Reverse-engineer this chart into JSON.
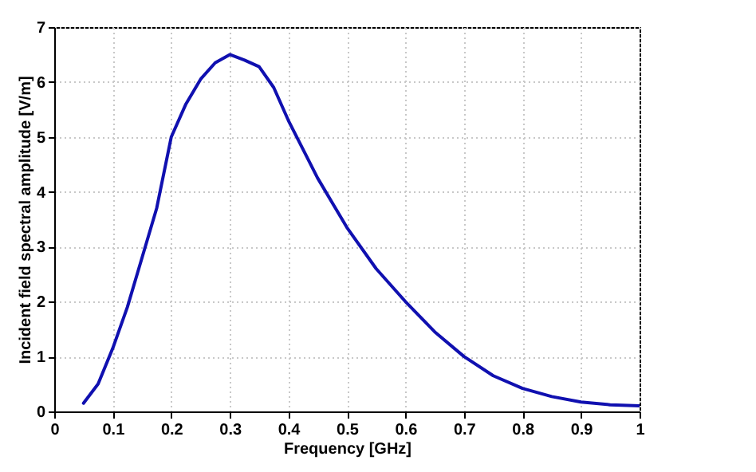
{
  "chart_data": {
    "type": "line",
    "xlabel": "Frequency [GHz]",
    "ylabel": "Incident field spectral amplitude [V/m]",
    "x": [
      0.05,
      0.075,
      0.1,
      0.125,
      0.15,
      0.175,
      0.2,
      0.225,
      0.25,
      0.275,
      0.3,
      0.325,
      0.35,
      0.375,
      0.4,
      0.45,
      0.5,
      0.55,
      0.6,
      0.65,
      0.7,
      0.75,
      0.8,
      0.85,
      0.9,
      0.95,
      1.0
    ],
    "series": [
      {
        "color": "#1010b0",
        "values": [
          0.15,
          0.5,
          1.15,
          1.9,
          2.8,
          3.7,
          5.0,
          5.6,
          6.05,
          6.35,
          6.5,
          6.4,
          6.28,
          5.9,
          5.3,
          4.25,
          3.35,
          2.6,
          2.0,
          1.45,
          1.0,
          0.65,
          0.42,
          0.27,
          0.17,
          0.12,
          0.1
        ]
      }
    ],
    "xlim": [
      0,
      1
    ],
    "xticks": [
      0,
      0.1,
      0.2,
      0.3,
      0.4,
      0.5,
      0.6,
      0.7,
      0.8,
      0.9,
      1
    ],
    "ylim": [
      0,
      7
    ],
    "yticks": [
      0,
      1,
      2,
      3,
      4,
      5,
      6,
      7
    ],
    "grid": true,
    "line_style": "solid"
  }
}
